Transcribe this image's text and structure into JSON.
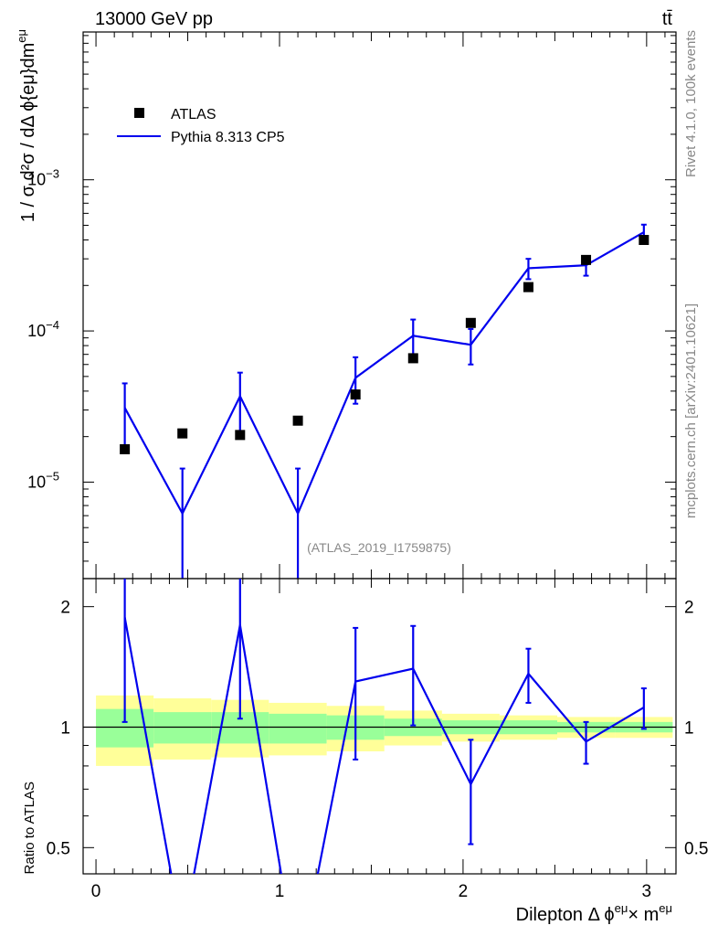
{
  "header": {
    "energy_label": "13000 GeV pp",
    "process_label": "tt̄"
  },
  "side_labels": {
    "rivet": "Rivet 4.1.0,  100k events",
    "mcplots": "mcplots.cern.ch [arXiv:2401.10621]"
  },
  "analysis_id": "(ATLAS_2019_I1759875)",
  "axes": {
    "main_ylabel": "1 / σ  d²σ / dΔ ϕ{eμ}dm",
    "main_ylabel_sup": "eμ",
    "ratio_ylabel": "Ratio to ATLAS",
    "xlabel": "Dilepton Δ ϕ",
    "xlabel_sup1": "eμ",
    "xlabel_mid": "× m",
    "xlabel_sup2": "eμ",
    "main_ytick_mantissa": "10",
    "main_ytick_exponents": [
      "−5",
      "−4",
      "−3"
    ],
    "ratio_yticks": [
      "0.5",
      "1",
      "2"
    ],
    "xticks": [
      "0",
      "1",
      "2",
      "3"
    ]
  },
  "legend": {
    "data_label": "ATLAS",
    "mc_label": "Pythia 8.313 CP5"
  },
  "colors": {
    "data": "#000000",
    "mc": "#0000ee",
    "band_inner": "#99ff99",
    "band_outer": "#ffff99",
    "text_gray": "#888888"
  },
  "chart_data": [
    {
      "type": "scatter",
      "title": "13000 GeV pp  tt̄",
      "xlabel": "Dilepton Δϕ(eμ) × m(eμ)",
      "ylabel": "1/σ d²σ / dΔϕ(eμ) dm(eμ)",
      "yscale": "log",
      "xlim": [
        -0.07,
        3.16
      ],
      "ylim": [
        2.3e-06,
        0.0095
      ],
      "x": [
        0.157,
        0.471,
        0.785,
        1.1,
        1.414,
        1.728,
        2.042,
        2.356,
        2.67,
        2.985
      ],
      "series": [
        {
          "name": "ATLAS",
          "values": [
            1.65e-05,
            2.1e-05,
            2.05e-05,
            2.55e-05,
            3.8e-05,
            6.6e-05,
            0.000113,
            0.000195,
            0.000295,
            0.0004
          ]
        },
        {
          "name": "Pythia 8.313 CP5",
          "values": [
            3.1e-05,
            6.2e-06,
            3.7e-05,
            6.2e-06,
            4.9e-05,
            9.3e-05,
            8.1e-05,
            0.00026,
            0.000272,
            0.00045
          ],
          "err_low": [
            1.4e-05,
            6e-06,
            1.6e-05,
            6e-06,
            1.6e-05,
            2.6e-05,
            2.1e-05,
            4e-05,
            4e-05,
            5.5e-05
          ],
          "err_high": [
            1.4e-05,
            6.1e-06,
            1.6e-05,
            6.1e-06,
            1.8e-05,
            2.6e-05,
            2.2e-05,
            4e-05,
            4e-05,
            5.5e-05
          ]
        }
      ],
      "legend": "top-left"
    },
    {
      "type": "line",
      "title": "Ratio to ATLAS",
      "ylabel": "Ratio to ATLAS",
      "yscale": "log",
      "ylim": [
        0.43,
        2.35
      ],
      "reference": 1,
      "x": [
        0.157,
        0.471,
        0.785,
        1.1,
        1.414,
        1.728,
        2.042,
        2.356,
        2.67,
        2.985
      ],
      "series": [
        {
          "name": "Pythia 8.313 CP5",
          "values": [
            1.88,
            0.3,
            1.8,
            0.24,
            1.3,
            1.4,
            0.72,
            1.36,
            0.92,
            1.12
          ],
          "err_low": [
            0.85,
            0.3,
            0.75,
            0.24,
            0.47,
            0.39,
            0.21,
            0.21,
            0.11,
            0.13
          ],
          "err_high": [
            0.85,
            0.3,
            0.75,
            0.24,
            0.47,
            0.39,
            0.21,
            0.21,
            0.11,
            0.13
          ]
        }
      ],
      "bands": {
        "bin_edges": [
          0,
          0.314,
          0.628,
          0.942,
          1.257,
          1.571,
          1.885,
          2.199,
          2.513,
          2.827,
          3.142
        ],
        "inner_low": [
          0.89,
          0.91,
          0.91,
          0.91,
          0.93,
          0.95,
          0.96,
          0.96,
          0.97,
          0.97
        ],
        "inner_high": [
          1.11,
          1.09,
          1.09,
          1.08,
          1.07,
          1.05,
          1.04,
          1.04,
          1.03,
          1.03
        ],
        "outer_low": [
          0.8,
          0.83,
          0.84,
          0.85,
          0.87,
          0.9,
          0.92,
          0.93,
          0.94,
          0.94
        ],
        "outer_high": [
          1.2,
          1.18,
          1.17,
          1.15,
          1.13,
          1.1,
          1.08,
          1.07,
          1.06,
          1.06
        ]
      }
    }
  ]
}
